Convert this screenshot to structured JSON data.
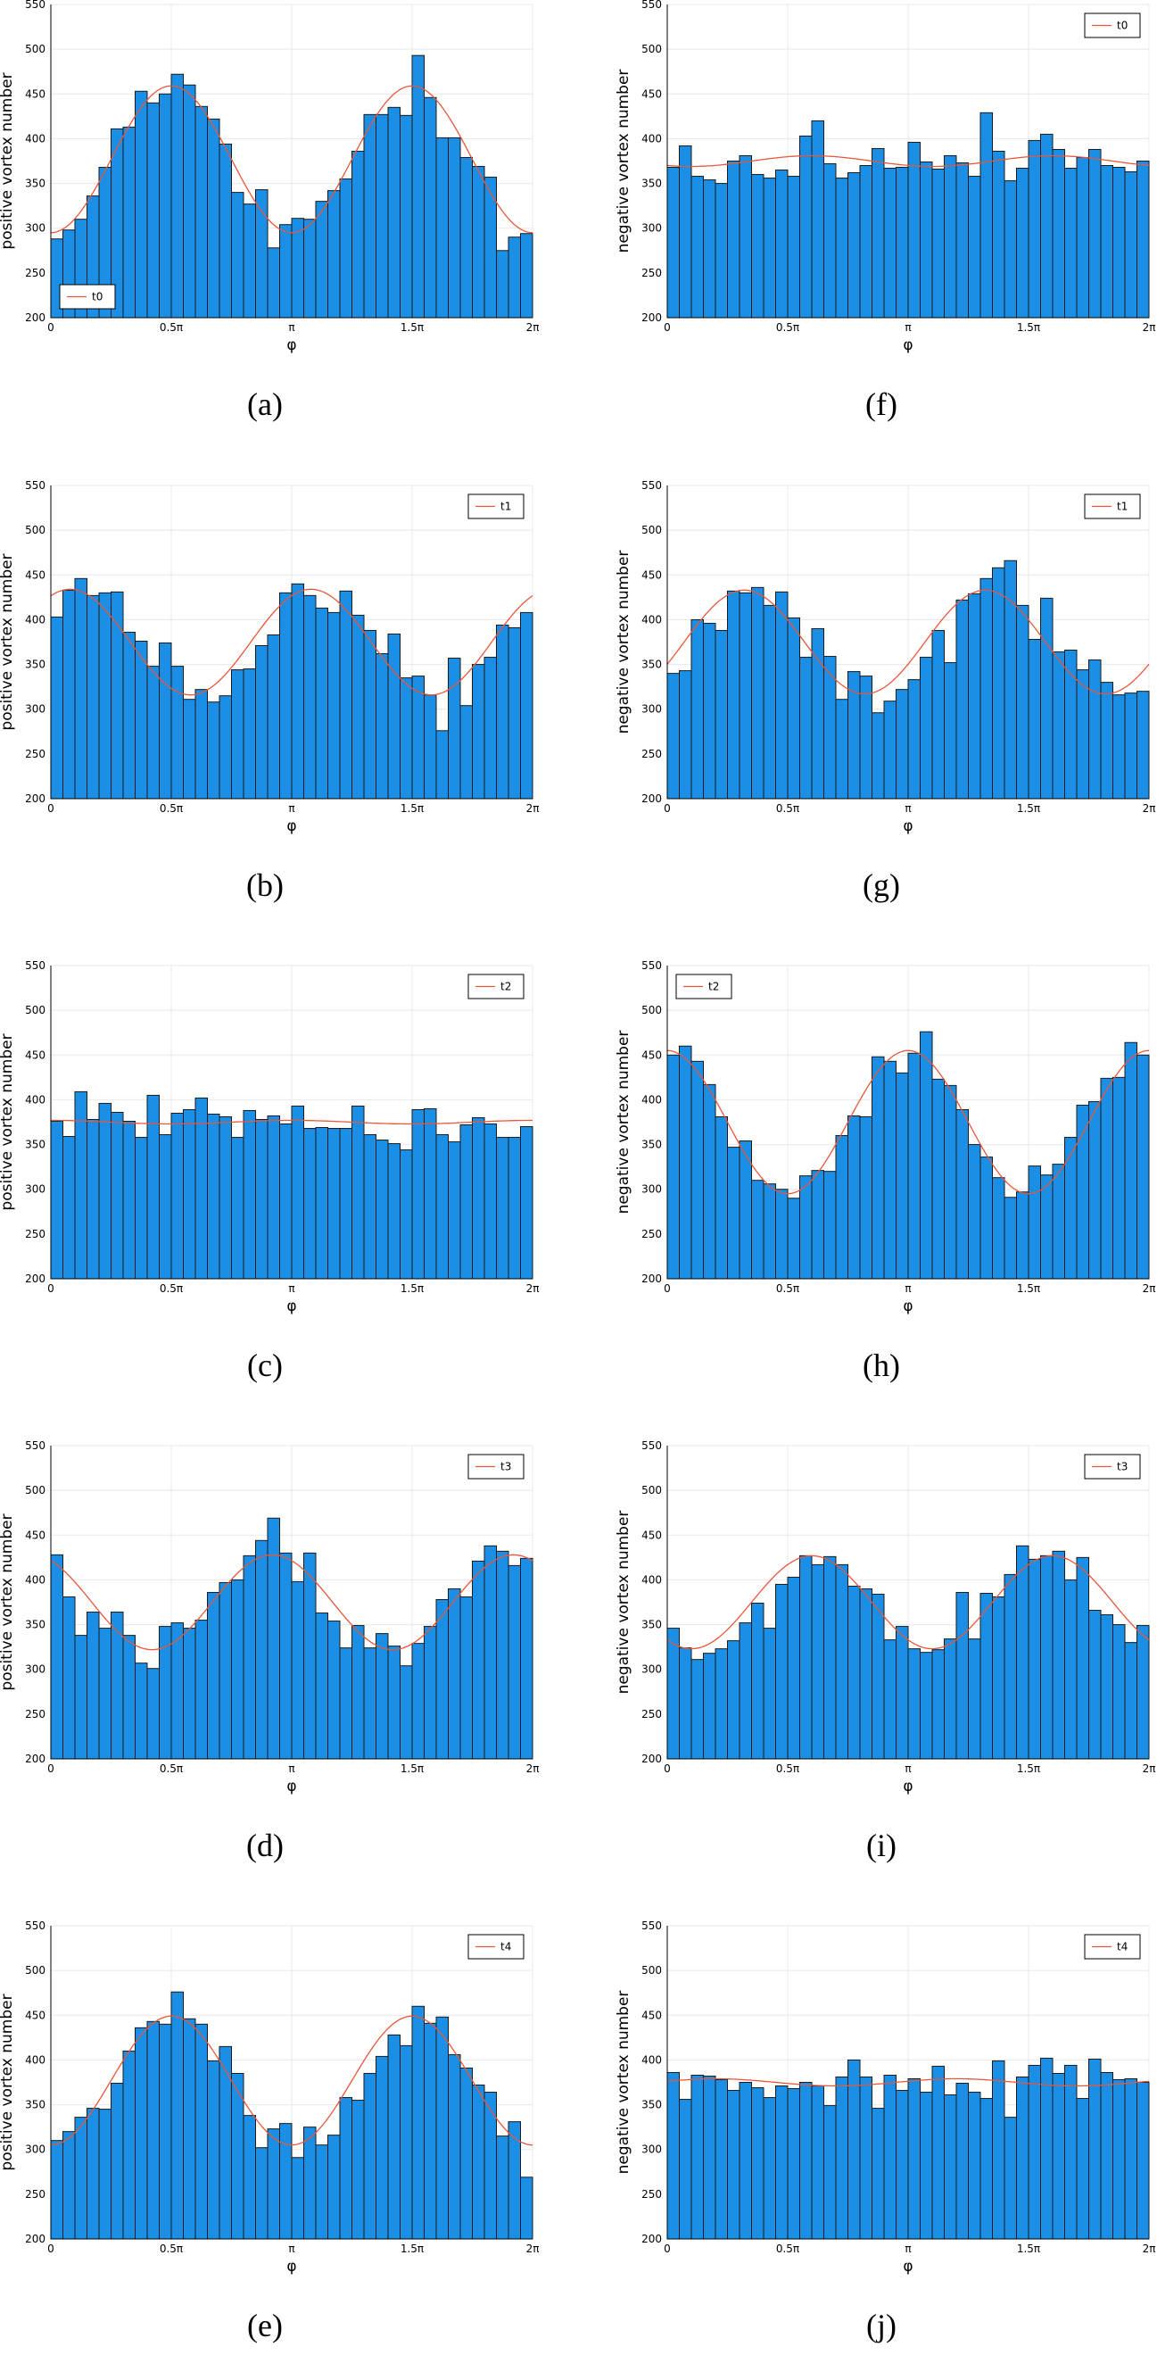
{
  "colors": {
    "bar": "#1b8fe6",
    "bar_edge": "#1a1a1a",
    "fit": "#e8563b",
    "grid": "#e8e8e8"
  },
  "chart_data": [
    {
      "id": "a",
      "caption": "(a)",
      "type": "bar",
      "legend": "t0",
      "legend_position": "bottom-left",
      "xlabel": "φ",
      "ylabel": "positive vortex number",
      "xticks": [
        "0",
        "0.5π",
        "π",
        "1.5π",
        "2π"
      ],
      "yticks": [
        "200",
        "250",
        "300",
        "350",
        "400",
        "450",
        "500",
        "550"
      ],
      "ylim": [
        200,
        550
      ],
      "xlim": [
        0,
        6.2832
      ],
      "grid": true,
      "values": [
        288,
        298,
        310,
        336,
        368,
        411,
        413,
        453,
        440,
        450,
        472,
        460,
        436,
        422,
        394,
        340,
        327,
        343,
        278,
        304,
        311,
        310,
        330,
        342,
        355,
        386,
        427,
        427,
        435,
        426,
        493,
        446,
        401,
        401,
        379,
        369,
        357,
        275,
        290,
        294
      ],
      "fit": {
        "mean": 377,
        "amp": 82,
        "phase_pi": 0.5
      }
    },
    {
      "id": "f",
      "caption": "(f)",
      "type": "bar",
      "legend": "t0",
      "legend_position": "top-right",
      "xlabel": "φ",
      "ylabel": "negative vortex number",
      "xticks": [
        "0",
        "0.5π",
        "π",
        "1.5π",
        "2π"
      ],
      "yticks": [
        "200",
        "250",
        "300",
        "350",
        "400",
        "450",
        "500",
        "550"
      ],
      "ylim": [
        200,
        550
      ],
      "xlim": [
        0,
        6.2832
      ],
      "grid": true,
      "values": [
        368,
        392,
        358,
        354,
        350,
        375,
        381,
        360,
        356,
        365,
        358,
        403,
        420,
        372,
        356,
        362,
        370,
        389,
        367,
        368,
        396,
        374,
        366,
        381,
        373,
        358,
        429,
        386,
        353,
        367,
        398,
        405,
        388,
        367,
        379,
        388,
        370,
        368,
        363,
        375
      ],
      "fit": {
        "mean": 375,
        "amp": 6,
        "phase_pi": 0.6
      }
    },
    {
      "id": "b",
      "caption": "(b)",
      "type": "bar",
      "legend": "t1",
      "legend_position": "top-right",
      "xlabel": "φ",
      "ylabel": "positive vortex number",
      "xticks": [
        "0",
        "0.5π",
        "π",
        "1.5π",
        "2π"
      ],
      "yticks": [
        "200",
        "250",
        "300",
        "350",
        "400",
        "450",
        "500",
        "550"
      ],
      "ylim": [
        200,
        550
      ],
      "xlim": [
        0,
        6.2832
      ],
      "grid": true,
      "values": [
        403,
        433,
        446,
        427,
        430,
        431,
        386,
        376,
        348,
        374,
        348,
        311,
        322,
        308,
        315,
        344,
        345,
        371,
        383,
        430,
        440,
        427,
        413,
        408,
        432,
        405,
        388,
        362,
        384,
        335,
        337,
        316,
        276,
        357,
        304,
        350,
        358,
        394,
        391,
        408
      ],
      "fit": {
        "mean": 375,
        "amp": 59,
        "phase_pi": 0.08
      }
    },
    {
      "id": "g",
      "caption": "(g)",
      "type": "bar",
      "legend": "t1",
      "legend_position": "top-right",
      "xlabel": "φ",
      "ylabel": "negative vortex number",
      "xticks": [
        "0",
        "0.5π",
        "π",
        "1.5π",
        "2π"
      ],
      "yticks": [
        "200",
        "250",
        "300",
        "350",
        "400",
        "450",
        "500",
        "550"
      ],
      "ylim": [
        200,
        550
      ],
      "xlim": [
        0,
        6.2832
      ],
      "grid": true,
      "values": [
        340,
        343,
        400,
        396,
        388,
        432,
        430,
        436,
        416,
        431,
        402,
        358,
        390,
        359,
        311,
        342,
        337,
        296,
        309,
        322,
        333,
        358,
        388,
        352,
        422,
        429,
        446,
        458,
        466,
        416,
        378,
        424,
        364,
        366,
        344,
        355,
        330,
        316,
        318,
        320
      ],
      "fit": {
        "mean": 375,
        "amp": 58,
        "phase_pi": 0.32
      }
    },
    {
      "id": "c",
      "caption": "(c)",
      "type": "bar",
      "legend": "t2",
      "legend_position": "top-right",
      "xlabel": "φ",
      "ylabel": "positive vortex number",
      "xticks": [
        "0",
        "0.5π",
        "π",
        "1.5π",
        "2π"
      ],
      "yticks": [
        "200",
        "250",
        "300",
        "350",
        "400",
        "450",
        "500",
        "550"
      ],
      "ylim": [
        200,
        550
      ],
      "xlim": [
        0,
        6.2832
      ],
      "grid": true,
      "values": [
        376,
        359,
        409,
        378,
        396,
        386,
        376,
        358,
        405,
        361,
        385,
        389,
        402,
        384,
        381,
        358,
        388,
        378,
        382,
        373,
        393,
        368,
        369,
        368,
        368,
        393,
        361,
        355,
        351,
        344,
        389,
        390,
        361,
        353,
        372,
        380,
        373,
        358,
        358,
        370
      ],
      "fit": {
        "mean": 375,
        "amp": 2,
        "phase_pi": 0.0
      }
    },
    {
      "id": "h",
      "caption": "(h)",
      "type": "bar",
      "legend": "t2",
      "legend_position": "top-left",
      "xlabel": "φ",
      "ylabel": "negative vortex number",
      "xticks": [
        "0",
        "0.5π",
        "π",
        "1.5π",
        "2π"
      ],
      "yticks": [
        "200",
        "250",
        "300",
        "350",
        "400",
        "450",
        "500",
        "550"
      ],
      "ylim": [
        200,
        550
      ],
      "xlim": [
        0,
        6.2832
      ],
      "grid": true,
      "values": [
        450,
        460,
        443,
        417,
        381,
        347,
        354,
        310,
        306,
        300,
        290,
        315,
        321,
        320,
        360,
        382,
        381,
        448,
        443,
        430,
        452,
        476,
        423,
        416,
        389,
        350,
        336,
        313,
        291,
        297,
        326,
        316,
        328,
        358,
        394,
        398,
        424,
        425,
        464,
        450
      ],
      "fit": {
        "mean": 375,
        "amp": 80,
        "phase_pi": 0.0
      }
    },
    {
      "id": "d",
      "caption": "(d)",
      "type": "bar",
      "legend": "t3",
      "legend_position": "top-right",
      "xlabel": "φ",
      "ylabel": "positive vortex number",
      "xticks": [
        "0",
        "0.5π",
        "π",
        "1.5π",
        "2π"
      ],
      "yticks": [
        "200",
        "250",
        "300",
        "350",
        "400",
        "450",
        "500",
        "550"
      ],
      "ylim": [
        200,
        550
      ],
      "xlim": [
        0,
        6.2832
      ],
      "grid": true,
      "values": [
        428,
        381,
        338,
        364,
        346,
        364,
        338,
        307,
        301,
        348,
        352,
        346,
        355,
        386,
        397,
        400,
        427,
        444,
        469,
        430,
        398,
        430,
        363,
        354,
        324,
        349,
        324,
        340,
        326,
        304,
        329,
        348,
        378,
        390,
        381,
        421,
        438,
        432,
        416,
        424
      ],
      "fit": {
        "mean": 375,
        "amp": 53,
        "phase_pi": 0.92
      }
    },
    {
      "id": "i",
      "caption": "(i)",
      "type": "bar",
      "legend": "t3",
      "legend_position": "top-right",
      "xlabel": "φ",
      "ylabel": "negative vortex number",
      "xticks": [
        "0",
        "0.5π",
        "π",
        "1.5π",
        "2π"
      ],
      "yticks": [
        "200",
        "250",
        "300",
        "350",
        "400",
        "450",
        "500",
        "550"
      ],
      "ylim": [
        200,
        550
      ],
      "xlim": [
        0,
        6.2832
      ],
      "grid": true,
      "values": [
        346,
        324,
        311,
        318,
        323,
        332,
        352,
        374,
        346,
        395,
        403,
        427,
        417,
        426,
        417,
        393,
        390,
        384,
        333,
        348,
        323,
        319,
        322,
        334,
        386,
        334,
        385,
        381,
        406,
        438,
        423,
        427,
        432,
        400,
        425,
        366,
        361,
        350,
        330,
        349
      ],
      "fit": {
        "mean": 375,
        "amp": 52,
        "phase_pi": 0.6
      }
    },
    {
      "id": "e",
      "caption": "(e)",
      "type": "bar",
      "legend": "t4",
      "legend_position": "top-right",
      "xlabel": "φ",
      "ylabel": "positive vortex number",
      "xticks": [
        "0",
        "0.5π",
        "π",
        "1.5π",
        "2π"
      ],
      "yticks": [
        "200",
        "250",
        "300",
        "350",
        "400",
        "450",
        "500",
        "550"
      ],
      "ylim": [
        200,
        550
      ],
      "xlim": [
        0,
        6.2832
      ],
      "grid": true,
      "values": [
        310,
        320,
        336,
        346,
        345,
        374,
        410,
        436,
        443,
        440,
        476,
        446,
        440,
        399,
        415,
        385,
        338,
        302,
        323,
        329,
        291,
        325,
        305,
        316,
        358,
        355,
        385,
        404,
        428,
        416,
        460,
        441,
        448,
        406,
        391,
        372,
        364,
        315,
        331,
        269
      ],
      "fit": {
        "mean": 377,
        "amp": 72,
        "phase_pi": 0.5
      }
    },
    {
      "id": "j",
      "caption": "(j)",
      "type": "bar",
      "legend": "t4",
      "legend_position": "top-right",
      "xlabel": "φ",
      "ylabel": "negative vortex number",
      "xticks": [
        "0",
        "0.5π",
        "π",
        "1.5π",
        "2π"
      ],
      "yticks": [
        "200",
        "250",
        "300",
        "350",
        "400",
        "450",
        "500",
        "550"
      ],
      "ylim": [
        200,
        550
      ],
      "xlim": [
        0,
        6.2832
      ],
      "grid": true,
      "values": [
        386,
        356,
        383,
        382,
        378,
        366,
        375,
        369,
        358,
        371,
        368,
        375,
        371,
        349,
        381,
        400,
        381,
        346,
        383,
        366,
        379,
        364,
        393,
        361,
        374,
        364,
        357,
        399,
        336,
        381,
        394,
        402,
        385,
        394,
        357,
        401,
        386,
        378,
        379,
        375
      ],
      "fit": {
        "mean": 375,
        "amp": 4,
        "phase_pi": 1.2
      }
    }
  ]
}
